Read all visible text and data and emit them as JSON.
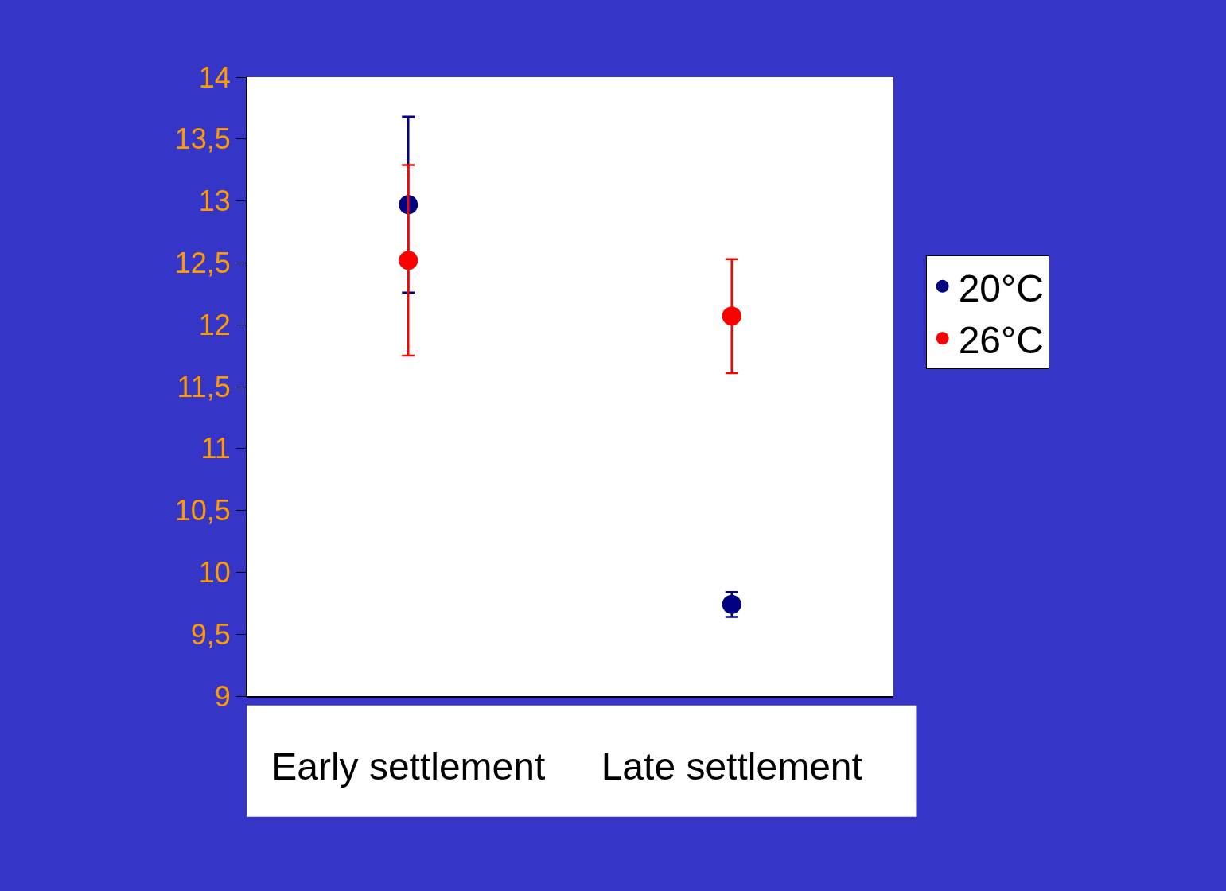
{
  "chart_data": {
    "type": "scatter",
    "categories": [
      "Early settlement",
      "Late settlement"
    ],
    "series": [
      {
        "name": "20°C",
        "color": "#000080",
        "values": [
          12.97,
          9.74
        ],
        "errors": [
          0.71,
          0.1
        ]
      },
      {
        "name": "26°C",
        "color": "#ff0000",
        "values": [
          12.52,
          12.07
        ],
        "errors": [
          0.77,
          0.46
        ]
      }
    ],
    "ylim": [
      9,
      14
    ],
    "yticks": [
      9,
      {
        "value": 9.5,
        "label": "9,5"
      },
      10,
      {
        "value": 10.5,
        "label": "10,5"
      },
      11,
      {
        "value": 11.5,
        "label": "11,5"
      },
      12,
      {
        "value": 12.5,
        "label": "12,5"
      },
      13,
      {
        "value": 13.5,
        "label": "13,5"
      },
      14
    ],
    "legend": "right",
    "marker": "circle"
  }
}
